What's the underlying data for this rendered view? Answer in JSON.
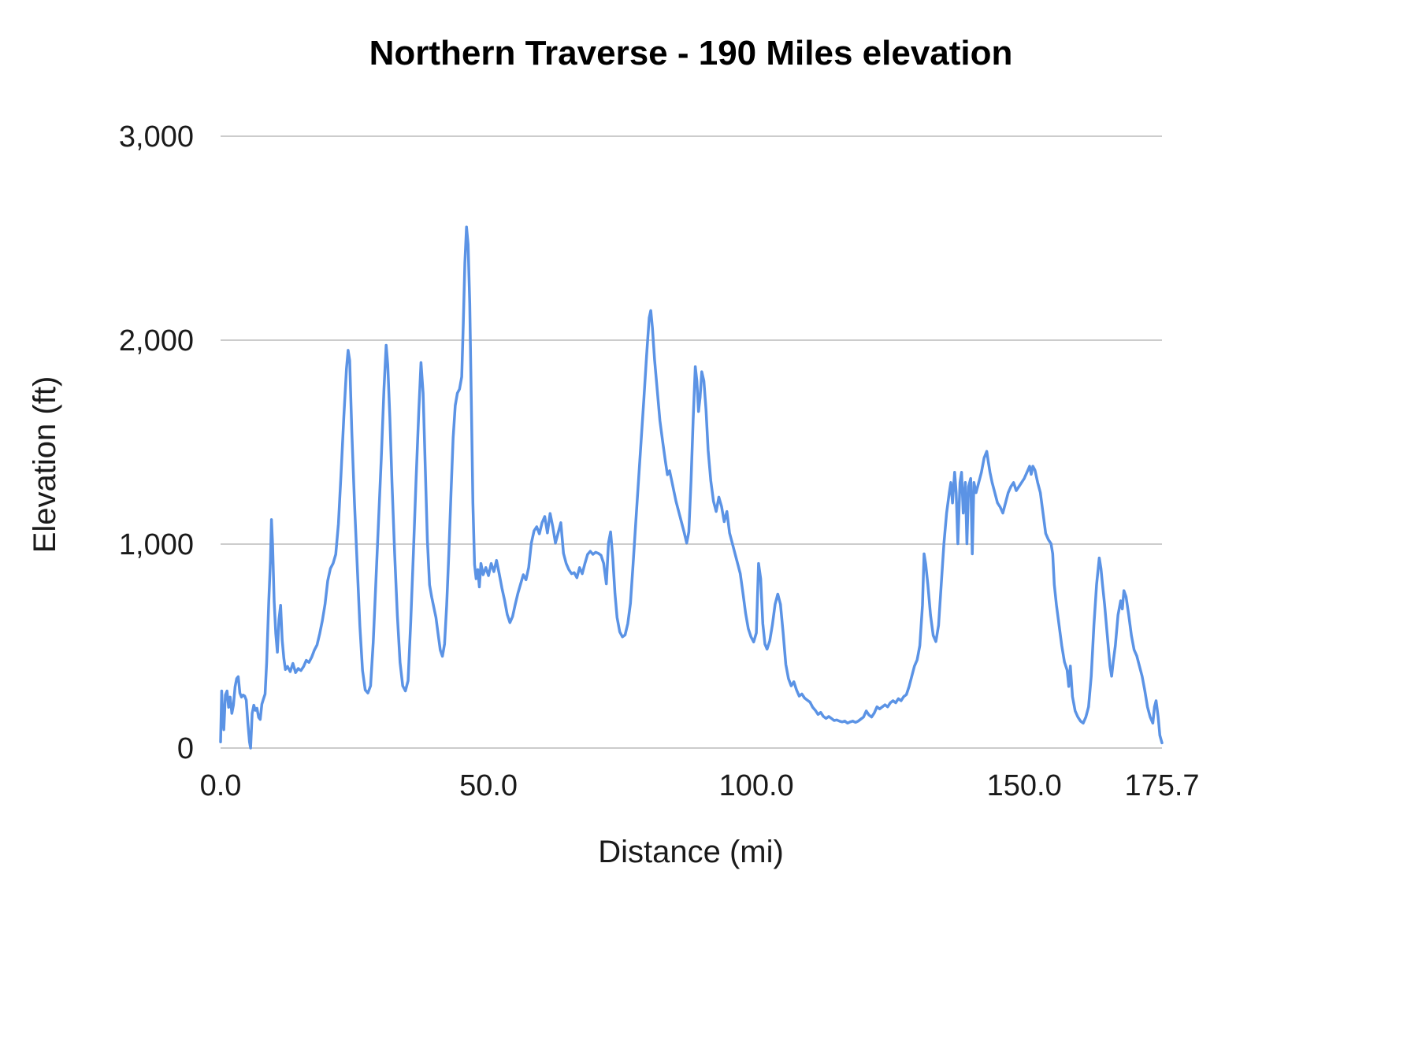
{
  "chart_data": {
    "type": "line",
    "title": "Northern Traverse - 190 Miles elevation",
    "xlabel": "Distance (mi)",
    "ylabel": "Elevation (ft)",
    "xlim": [
      0,
      175.7
    ],
    "ylim": [
      0,
      3000
    ],
    "grid": true,
    "legend": "none",
    "line_color": "#5b93e5",
    "grid_color": "#cccccc",
    "x_ticks": [
      {
        "value": 0,
        "label": "0.0"
      },
      {
        "value": 50,
        "label": "50.0"
      },
      {
        "value": 100,
        "label": "100.0"
      },
      {
        "value": 150,
        "label": "150.0"
      },
      {
        "value": 175.7,
        "label": "175.7"
      }
    ],
    "y_ticks": [
      {
        "value": 0,
        "label": "0"
      },
      {
        "value": 1000,
        "label": "1,000"
      },
      {
        "value": 2000,
        "label": "2,000"
      },
      {
        "value": 3000,
        "label": "3,000"
      }
    ],
    "points": [
      [
        0,
        30
      ],
      [
        0.2,
        280
      ],
      [
        0.4,
        150
      ],
      [
        0.6,
        90
      ],
      [
        0.9,
        260
      ],
      [
        1.2,
        280
      ],
      [
        1.5,
        200
      ],
      [
        1.8,
        250
      ],
      [
        2.1,
        170
      ],
      [
        2.4,
        210
      ],
      [
        2.7,
        300
      ],
      [
        3.0,
        340
      ],
      [
        3.3,
        350
      ],
      [
        3.6,
        270
      ],
      [
        3.9,
        250
      ],
      [
        4.2,
        260
      ],
      [
        4.5,
        255
      ],
      [
        4.8,
        235
      ],
      [
        5.1,
        120
      ],
      [
        5.4,
        30
      ],
      [
        5.6,
        0
      ],
      [
        5.9,
        170
      ],
      [
        6.2,
        210
      ],
      [
        6.5,
        185
      ],
      [
        6.8,
        195
      ],
      [
        7.1,
        150
      ],
      [
        7.4,
        140
      ],
      [
        7.7,
        215
      ],
      [
        8.0,
        240
      ],
      [
        8.3,
        265
      ],
      [
        8.6,
        420
      ],
      [
        9.0,
        720
      ],
      [
        9.3,
        920
      ],
      [
        9.5,
        1120
      ],
      [
        9.7,
        1000
      ],
      [
        10.0,
        720
      ],
      [
        10.3,
        560
      ],
      [
        10.6,
        470
      ],
      [
        10.9,
        630
      ],
      [
        11.2,
        700
      ],
      [
        11.5,
        530
      ],
      [
        11.8,
        440
      ],
      [
        12.1,
        385
      ],
      [
        12.5,
        400
      ],
      [
        13.0,
        375
      ],
      [
        13.5,
        415
      ],
      [
        14.0,
        370
      ],
      [
        14.5,
        390
      ],
      [
        15.0,
        380
      ],
      [
        15.5,
        400
      ],
      [
        16.0,
        430
      ],
      [
        16.5,
        420
      ],
      [
        17.0,
        445
      ],
      [
        17.5,
        480
      ],
      [
        18.0,
        505
      ],
      [
        18.5,
        560
      ],
      [
        19.0,
        625
      ],
      [
        19.5,
        705
      ],
      [
        20.0,
        820
      ],
      [
        20.5,
        880
      ],
      [
        21.0,
        905
      ],
      [
        21.5,
        950
      ],
      [
        22.0,
        1100
      ],
      [
        22.5,
        1350
      ],
      [
        23.0,
        1620
      ],
      [
        23.5,
        1860
      ],
      [
        23.8,
        1950
      ],
      [
        24.1,
        1900
      ],
      [
        24.5,
        1550
      ],
      [
        25.0,
        1200
      ],
      [
        25.5,
        900
      ],
      [
        26.0,
        600
      ],
      [
        26.5,
        380
      ],
      [
        27.0,
        285
      ],
      [
        27.5,
        270
      ],
      [
        28.0,
        305
      ],
      [
        28.5,
        520
      ],
      [
        29.0,
        820
      ],
      [
        29.5,
        1120
      ],
      [
        30.0,
        1420
      ],
      [
        30.5,
        1760
      ],
      [
        30.9,
        1975
      ],
      [
        31.2,
        1880
      ],
      [
        31.6,
        1620
      ],
      [
        32.0,
        1300
      ],
      [
        32.5,
        950
      ],
      [
        33.0,
        650
      ],
      [
        33.5,
        420
      ],
      [
        34.0,
        305
      ],
      [
        34.5,
        280
      ],
      [
        35.0,
        330
      ],
      [
        35.5,
        620
      ],
      [
        36.0,
        960
      ],
      [
        36.5,
        1320
      ],
      [
        37.0,
        1660
      ],
      [
        37.4,
        1890
      ],
      [
        37.8,
        1740
      ],
      [
        38.2,
        1380
      ],
      [
        38.6,
        1020
      ],
      [
        39.0,
        800
      ],
      [
        39.4,
        740
      ],
      [
        39.8,
        690
      ],
      [
        40.2,
        640
      ],
      [
        40.6,
        560
      ],
      [
        41.0,
        480
      ],
      [
        41.4,
        450
      ],
      [
        41.8,
        510
      ],
      [
        42.2,
        700
      ],
      [
        42.6,
        950
      ],
      [
        43.0,
        1250
      ],
      [
        43.4,
        1520
      ],
      [
        43.8,
        1680
      ],
      [
        44.2,
        1740
      ],
      [
        44.6,
        1760
      ],
      [
        45.0,
        1820
      ],
      [
        45.3,
        2080
      ],
      [
        45.6,
        2380
      ],
      [
        45.9,
        2555
      ],
      [
        46.2,
        2470
      ],
      [
        46.5,
        2180
      ],
      [
        46.8,
        1700
      ],
      [
        47.1,
        1200
      ],
      [
        47.4,
        900
      ],
      [
        47.7,
        830
      ],
      [
        48.0,
        875
      ],
      [
        48.3,
        790
      ],
      [
        48.6,
        905
      ],
      [
        49.0,
        850
      ],
      [
        49.5,
        885
      ],
      [
        50.0,
        845
      ],
      [
        50.5,
        905
      ],
      [
        51.0,
        865
      ],
      [
        51.5,
        920
      ],
      [
        52.0,
        855
      ],
      [
        52.5,
        785
      ],
      [
        53.0,
        725
      ],
      [
        53.5,
        655
      ],
      [
        54.0,
        615
      ],
      [
        54.5,
        645
      ],
      [
        55.0,
        705
      ],
      [
        55.5,
        760
      ],
      [
        56.0,
        805
      ],
      [
        56.5,
        850
      ],
      [
        57.0,
        825
      ],
      [
        57.5,
        885
      ],
      [
        58.0,
        1005
      ],
      [
        58.5,
        1065
      ],
      [
        59.0,
        1085
      ],
      [
        59.5,
        1050
      ],
      [
        60.0,
        1105
      ],
      [
        60.5,
        1135
      ],
      [
        61.0,
        1055
      ],
      [
        61.5,
        1150
      ],
      [
        62.0,
        1085
      ],
      [
        62.5,
        1005
      ],
      [
        63.0,
        1055
      ],
      [
        63.5,
        1105
      ],
      [
        64.0,
        955
      ],
      [
        64.5,
        905
      ],
      [
        65.0,
        875
      ],
      [
        65.5,
        855
      ],
      [
        66.0,
        860
      ],
      [
        66.5,
        835
      ],
      [
        67.0,
        885
      ],
      [
        67.5,
        855
      ],
      [
        68.0,
        905
      ],
      [
        68.5,
        950
      ],
      [
        69.0,
        965
      ],
      [
        69.5,
        950
      ],
      [
        70.0,
        960
      ],
      [
        70.5,
        955
      ],
      [
        71.0,
        945
      ],
      [
        71.5,
        905
      ],
      [
        72.0,
        805
      ],
      [
        72.4,
        1005
      ],
      [
        72.8,
        1060
      ],
      [
        73.2,
        930
      ],
      [
        73.6,
        760
      ],
      [
        74.0,
        640
      ],
      [
        74.5,
        570
      ],
      [
        75.0,
        545
      ],
      [
        75.5,
        555
      ],
      [
        76.0,
        610
      ],
      [
        76.5,
        710
      ],
      [
        77.0,
        905
      ],
      [
        77.5,
        1110
      ],
      [
        78.0,
        1310
      ],
      [
        78.5,
        1510
      ],
      [
        79.0,
        1710
      ],
      [
        79.5,
        1920
      ],
      [
        80.0,
        2110
      ],
      [
        80.3,
        2145
      ],
      [
        80.6,
        2060
      ],
      [
        81.0,
        1905
      ],
      [
        81.5,
        1755
      ],
      [
        82.0,
        1605
      ],
      [
        82.5,
        1505
      ],
      [
        83.0,
        1410
      ],
      [
        83.4,
        1340
      ],
      [
        83.8,
        1360
      ],
      [
        84.2,
        1310
      ],
      [
        84.6,
        1260
      ],
      [
        85.0,
        1210
      ],
      [
        85.5,
        1160
      ],
      [
        86.0,
        1110
      ],
      [
        86.5,
        1060
      ],
      [
        87.0,
        1005
      ],
      [
        87.4,
        1060
      ],
      [
        87.8,
        1310
      ],
      [
        88.2,
        1610
      ],
      [
        88.6,
        1870
      ],
      [
        88.9,
        1800
      ],
      [
        89.2,
        1650
      ],
      [
        89.5,
        1720
      ],
      [
        89.8,
        1845
      ],
      [
        90.2,
        1800
      ],
      [
        90.6,
        1660
      ],
      [
        91.0,
        1460
      ],
      [
        91.5,
        1310
      ],
      [
        92.0,
        1210
      ],
      [
        92.5,
        1160
      ],
      [
        93.0,
        1230
      ],
      [
        93.5,
        1185
      ],
      [
        94.0,
        1110
      ],
      [
        94.5,
        1160
      ],
      [
        95.0,
        1055
      ],
      [
        95.5,
        1005
      ],
      [
        96.0,
        955
      ],
      [
        96.5,
        905
      ],
      [
        97.0,
        855
      ],
      [
        97.5,
        760
      ],
      [
        98.0,
        660
      ],
      [
        98.5,
        585
      ],
      [
        99.0,
        545
      ],
      [
        99.5,
        520
      ],
      [
        100.0,
        565
      ],
      [
        100.4,
        905
      ],
      [
        100.8,
        830
      ],
      [
        101.2,
        610
      ],
      [
        101.6,
        510
      ],
      [
        102.0,
        485
      ],
      [
        102.5,
        525
      ],
      [
        103.0,
        605
      ],
      [
        103.5,
        705
      ],
      [
        104.0,
        755
      ],
      [
        104.5,
        705
      ],
      [
        105.0,
        565
      ],
      [
        105.5,
        410
      ],
      [
        106.0,
        340
      ],
      [
        106.5,
        305
      ],
      [
        107.0,
        325
      ],
      [
        107.5,
        285
      ],
      [
        108.0,
        255
      ],
      [
        108.5,
        265
      ],
      [
        109.0,
        245
      ],
      [
        109.5,
        235
      ],
      [
        110.0,
        225
      ],
      [
        110.5,
        200
      ],
      [
        111.0,
        185
      ],
      [
        111.5,
        165
      ],
      [
        112.0,
        175
      ],
      [
        112.5,
        155
      ],
      [
        113.0,
        145
      ],
      [
        113.5,
        155
      ],
      [
        114.0,
        145
      ],
      [
        114.5,
        135
      ],
      [
        115.0,
        138
      ],
      [
        115.5,
        132
      ],
      [
        116.0,
        128
      ],
      [
        116.5,
        132
      ],
      [
        117.0,
        122
      ],
      [
        117.5,
        128
      ],
      [
        118.0,
        132
      ],
      [
        118.5,
        126
      ],
      [
        119.0,
        132
      ],
      [
        119.5,
        142
      ],
      [
        120.0,
        152
      ],
      [
        120.5,
        182
      ],
      [
        121.0,
        162
      ],
      [
        121.5,
        152
      ],
      [
        122.0,
        172
      ],
      [
        122.5,
        202
      ],
      [
        123.0,
        192
      ],
      [
        123.5,
        202
      ],
      [
        124.0,
        212
      ],
      [
        124.5,
        202
      ],
      [
        125.0,
        222
      ],
      [
        125.5,
        232
      ],
      [
        126.0,
        222
      ],
      [
        126.5,
        242
      ],
      [
        127.0,
        232
      ],
      [
        127.5,
        252
      ],
      [
        128.0,
        262
      ],
      [
        128.5,
        302
      ],
      [
        129.0,
        352
      ],
      [
        129.5,
        402
      ],
      [
        130.0,
        432
      ],
      [
        130.5,
        502
      ],
      [
        131.0,
        702
      ],
      [
        131.3,
        952
      ],
      [
        131.6,
        902
      ],
      [
        132.0,
        802
      ],
      [
        132.5,
        652
      ],
      [
        133.0,
        552
      ],
      [
        133.5,
        522
      ],
      [
        134.0,
        602
      ],
      [
        134.5,
        802
      ],
      [
        135.0,
        1002
      ],
      [
        135.5,
        1152
      ],
      [
        136.0,
        1252
      ],
      [
        136.3,
        1302
      ],
      [
        136.6,
        1202
      ],
      [
        137.0,
        1352
      ],
      [
        137.3,
        1252
      ],
      [
        137.6,
        1002
      ],
      [
        138.0,
        1302
      ],
      [
        138.3,
        1352
      ],
      [
        138.6,
        1152
      ],
      [
        139.0,
        1302
      ],
      [
        139.3,
        1002
      ],
      [
        139.6,
        1282
      ],
      [
        140.0,
        1322
      ],
      [
        140.3,
        952
      ],
      [
        140.6,
        1302
      ],
      [
        141.0,
        1252
      ],
      [
        141.5,
        1302
      ],
      [
        142.0,
        1352
      ],
      [
        142.5,
        1422
      ],
      [
        143.0,
        1455
      ],
      [
        143.3,
        1402
      ],
      [
        143.6,
        1352
      ],
      [
        144.0,
        1302
      ],
      [
        144.5,
        1252
      ],
      [
        145.0,
        1202
      ],
      [
        145.5,
        1182
      ],
      [
        146.0,
        1152
      ],
      [
        146.5,
        1202
      ],
      [
        147.0,
        1252
      ],
      [
        147.5,
        1282
      ],
      [
        148.0,
        1302
      ],
      [
        148.5,
        1262
      ],
      [
        149.0,
        1282
      ],
      [
        149.5,
        1302
      ],
      [
        150.0,
        1322
      ],
      [
        150.5,
        1352
      ],
      [
        151.0,
        1382
      ],
      [
        151.3,
        1342
      ],
      [
        151.6,
        1382
      ],
      [
        152.0,
        1362
      ],
      [
        152.5,
        1302
      ],
      [
        153.0,
        1252
      ],
      [
        153.5,
        1152
      ],
      [
        154.0,
        1052
      ],
      [
        154.5,
        1022
      ],
      [
        155.0,
        1002
      ],
      [
        155.3,
        952
      ],
      [
        155.6,
        802
      ],
      [
        156.0,
        702
      ],
      [
        156.5,
        602
      ],
      [
        157.0,
        502
      ],
      [
        157.5,
        422
      ],
      [
        158.0,
        382
      ],
      [
        158.3,
        302
      ],
      [
        158.6,
        402
      ],
      [
        159.0,
        252
      ],
      [
        159.5,
        182
      ],
      [
        160.0,
        152
      ],
      [
        160.5,
        132
      ],
      [
        161.0,
        122
      ],
      [
        161.5,
        152
      ],
      [
        162.0,
        202
      ],
      [
        162.5,
        352
      ],
      [
        163.0,
        602
      ],
      [
        163.5,
        802
      ],
      [
        164.0,
        932
      ],
      [
        164.3,
        882
      ],
      [
        164.6,
        802
      ],
      [
        165.0,
        702
      ],
      [
        165.5,
        552
      ],
      [
        166.0,
        402
      ],
      [
        166.3,
        352
      ],
      [
        166.6,
        422
      ],
      [
        167.0,
        502
      ],
      [
        167.5,
        652
      ],
      [
        168.0,
        722
      ],
      [
        168.3,
        682
      ],
      [
        168.6,
        772
      ],
      [
        169.0,
        742
      ],
      [
        169.5,
        652
      ],
      [
        170.0,
        552
      ],
      [
        170.5,
        482
      ],
      [
        171.0,
        452
      ],
      [
        171.5,
        402
      ],
      [
        172.0,
        352
      ],
      [
        172.5,
        282
      ],
      [
        173.0,
        202
      ],
      [
        173.5,
        152
      ],
      [
        174.0,
        122
      ],
      [
        174.3,
        202
      ],
      [
        174.6,
        232
      ],
      [
        175.0,
        152
      ],
      [
        175.3,
        62
      ],
      [
        175.7,
        25
      ]
    ]
  }
}
